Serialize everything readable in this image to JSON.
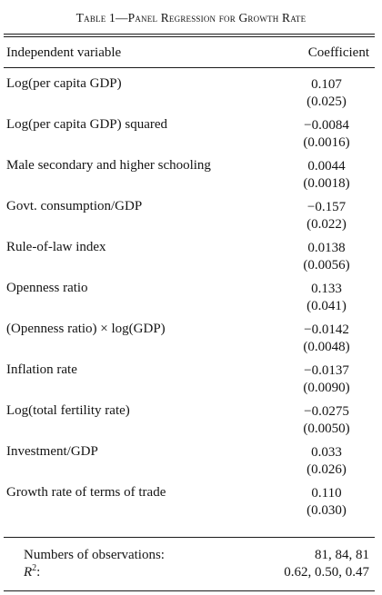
{
  "table": {
    "title": "Table 1—Panel Regression for Growth Rate",
    "header": {
      "left": "Independent variable",
      "right": "Coefficient"
    },
    "rows": [
      {
        "label": "Log(per capita GDP)",
        "coef": "0.107",
        "se": "(0.025)"
      },
      {
        "label": "Log(per capita GDP) squared",
        "coef": "−0.0084",
        "se": "(0.0016)"
      },
      {
        "label": "Male secondary and higher schooling",
        "coef": "0.0044",
        "se": "(0.0018)"
      },
      {
        "label": "Govt. consumption/GDP",
        "coef": "−0.157",
        "se": "(0.022)"
      },
      {
        "label": "Rule-of-law index",
        "coef": "0.0138",
        "se": "(0.0056)"
      },
      {
        "label": "Openness ratio",
        "coef": "0.133",
        "se": "(0.041)"
      },
      {
        "label": "(Openness ratio) × log(GDP)",
        "coef": "−0.0142",
        "se": "(0.0048)"
      },
      {
        "label": "Inflation rate",
        "coef": "−0.0137",
        "se": "(0.0090)"
      },
      {
        "label": "Log(total fertility rate)",
        "coef": "−0.0275",
        "se": "(0.0050)"
      },
      {
        "label": "Investment/GDP",
        "coef": "0.033",
        "se": "(0.026)"
      },
      {
        "label": "Growth rate of terms of trade",
        "coef": "0.110",
        "se": "(0.030)"
      }
    ],
    "footer": {
      "obs_label": "Numbers of observations:",
      "obs_value": "81, 84, 81",
      "r2_symbol": "R",
      "r2_exponent": "2",
      "r2_suffix": ":",
      "r2_value": "0.62, 0.50, 0.47"
    }
  }
}
